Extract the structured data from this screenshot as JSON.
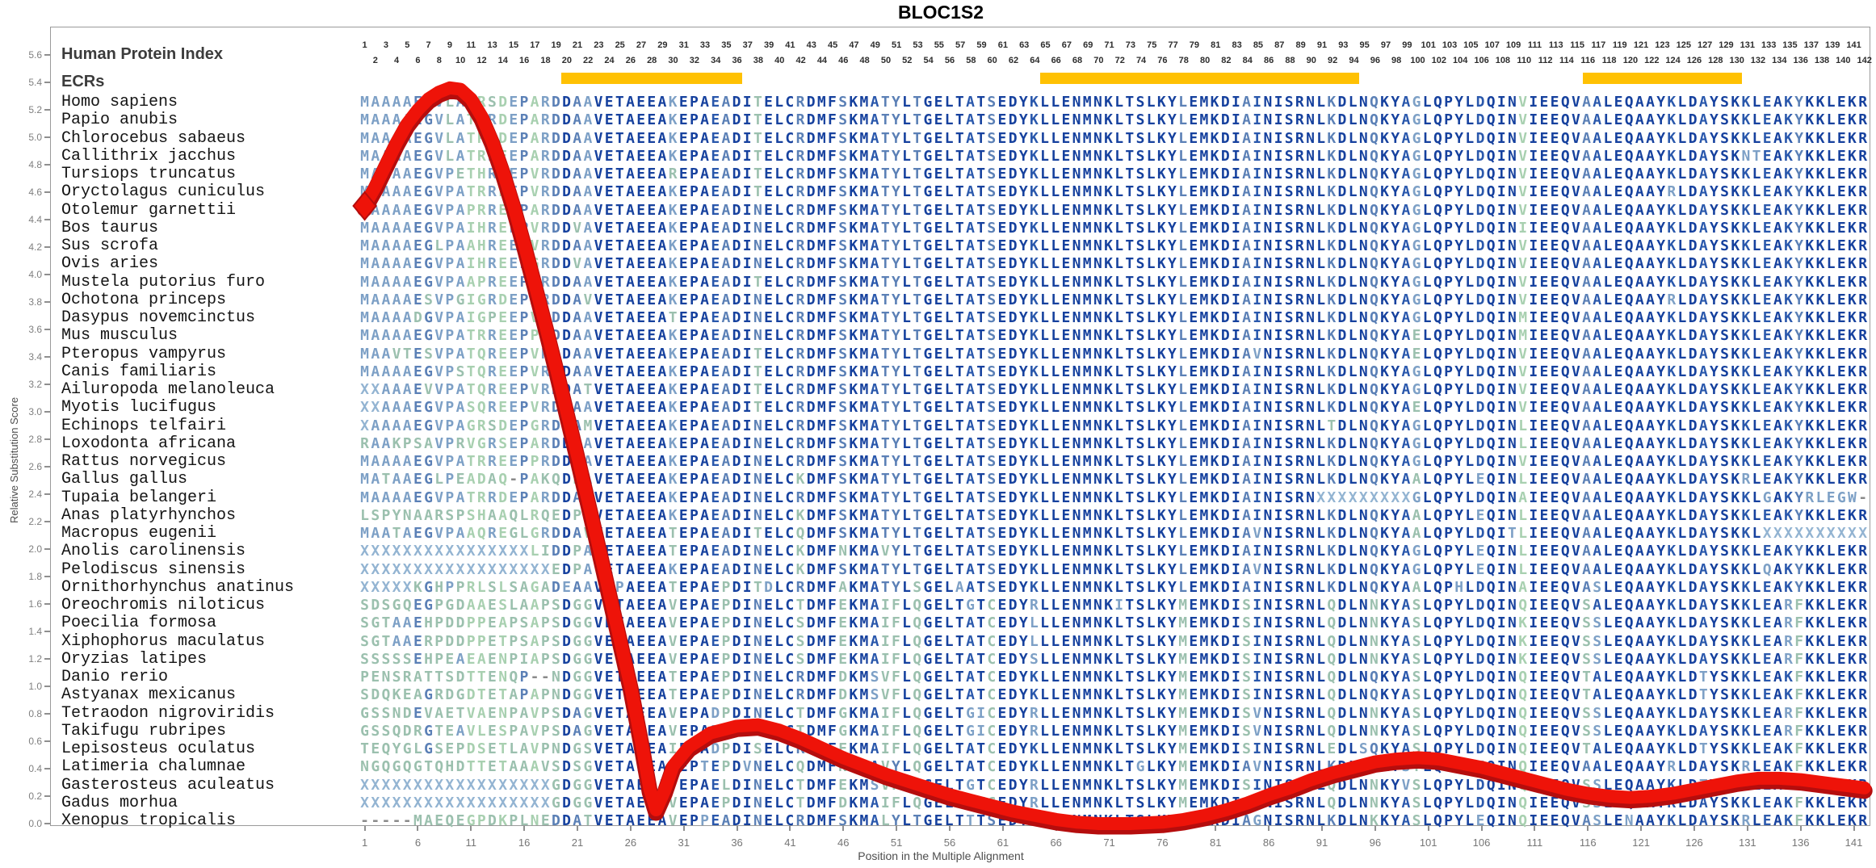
{
  "title": "BLOC1S2",
  "header": {
    "index_label": "Human Protein Index",
    "ecrs_label": "ECRs"
  },
  "axes": {
    "y_label": "Relative Substitution Score",
    "x_label": "Position in the Multiple Alignment",
    "y_ticks": [
      5.6,
      5.4,
      5.2,
      5.0,
      4.8,
      4.6,
      4.4,
      4.2,
      4.0,
      3.8,
      3.6,
      3.4,
      3.2,
      3.0,
      2.8,
      2.6,
      2.4,
      2.2,
      2.0,
      1.8,
      1.6,
      1.4,
      1.2,
      1.0,
      0.8,
      0.6,
      0.4,
      0.2,
      0.0
    ],
    "x_ticks": [
      1,
      6,
      11,
      16,
      21,
      26,
      31,
      36,
      41,
      46,
      51,
      56,
      61,
      66,
      71,
      76,
      81,
      86,
      91,
      96,
      101,
      106,
      111,
      116,
      121,
      126,
      131,
      136,
      141
    ],
    "top_numbers_odd": [
      1,
      3,
      5,
      7,
      9,
      11,
      13,
      15,
      17,
      19,
      21,
      23,
      25,
      27,
      29,
      31,
      33,
      35,
      37,
      39,
      41,
      43,
      45,
      47,
      49,
      51,
      53,
      55,
      57,
      59,
      61,
      63,
      65,
      67,
      69,
      71,
      73,
      75,
      77,
      79,
      81,
      83,
      85,
      87,
      89,
      91,
      93,
      95,
      97,
      99,
      101,
      103,
      105,
      107,
      109,
      111,
      113,
      115,
      117,
      119,
      121,
      123,
      125,
      127,
      129,
      131,
      133,
      135,
      137,
      139,
      141
    ],
    "top_numbers_even": [
      2,
      4,
      6,
      8,
      10,
      12,
      14,
      16,
      18,
      20,
      22,
      24,
      26,
      28,
      30,
      32,
      34,
      36,
      38,
      40,
      42,
      44,
      46,
      48,
      50,
      52,
      54,
      56,
      58,
      60,
      62,
      64,
      66,
      68,
      70,
      72,
      74,
      76,
      78,
      80,
      82,
      84,
      86,
      88,
      90,
      92,
      94,
      96,
      98,
      100,
      102,
      104,
      106,
      108,
      110,
      112,
      114,
      116,
      118,
      120,
      122,
      124,
      126,
      128,
      130,
      132,
      134,
      136,
      138,
      140,
      142
    ]
  },
  "ecr_bars": {
    "color": "#ffc103",
    "regions": [
      {
        "start": 20,
        "end": 36
      },
      {
        "start": 65,
        "end": 94
      },
      {
        "start": 116,
        "end": 130
      }
    ]
  },
  "colors": {
    "curve_main": "#ee1309",
    "curve_shadow": "#b50d0d",
    "seq_navy": "#16419e",
    "seq_medium_dark": "#2a58ac",
    "seq_medium": "#5b80b6",
    "seq_slate": "#7da0c6",
    "seq_pale_green": "#a8d0b0",
    "seq_mismatch_green": "#9bc0ae",
    "seq_x": "#93b4d2",
    "seq_gap": "#8a8a8a"
  },
  "alignment": {
    "species": [
      "Homo sapiens",
      "Papio anubis",
      "Chlorocebus sabaeus",
      "Callithrix jacchus",
      "Tursiops truncatus",
      "Oryctolagus cuniculus",
      "Otolemur garnettii",
      "Bos taurus",
      "Sus scrofa",
      "Ovis aries",
      "Mustela putorius furo",
      "Ochotona princeps",
      "Dasypus novemcinctus",
      "Mus musculus",
      "Pteropus vampyrus",
      "Canis familiaris",
      "Ailuropoda melanoleuca",
      "Myotis lucifugus",
      "Echinops telfairi",
      "Loxodonta africana",
      "Rattus norvegicus",
      "Gallus gallus",
      "Tupaia belangeri",
      "Anas platyrhynchos",
      "Macropus eugenii",
      "Anolis carolinensis",
      "Pelodiscus sinensis",
      "Ornithorhynchus anatinus",
      "Oreochromis niloticus",
      "Poecilia formosa",
      "Xiphophorus maculatus",
      "Oryzias latipes",
      "Danio rerio",
      "Astyanax mexicanus",
      "Tetraodon nigroviridis",
      "Takifugu rubripes",
      "Lepisosteus oculatus",
      "Latimeria chalumnae",
      "Gasterosteus aculeatus",
      "Gadus morhua",
      "Xenopus tropicalis"
    ],
    "sequences": [
      "MAAAAEGVLATRSDEPARDDAAVETAEEAKEPAEADITELCRDMFSKMATYLTGELTATSEDYKLLENMNKLTSLKYLEMKDIAINISRNLKDLNQKYAGLQPYLDQINVIEEQVAALEQAAYKLDAYSKKLEAKYKKLEKR",
      "MAAAAEGVLATRRDEPARDDAAVETAEEAKEPAEADITELCRDMFSKMATYLTGELTATSEDYKLLENMNKLTSLKYLEMKDIAINISRNLKDLNQKYAGLQPYLDQINVIEEQVAALEQAAYKLDAYSKKLEAKYKKLEKR",
      "MAAAAEGVLATRRDEPARDDAAVETAEEAKEPAEADITELCRDMFSKMATYLTGELTATSEDYKLLENMNKLTSLKYLEMKDIAINISRNLKDLNQKYAGLQPYLDQINVIEEQVAALEQAAYKLDAYSKKLEAKYKKLEKR",
      "MAAAAEGVLATRREEPARDDAAVETAEEAKEPAEADITELCRDMFSKMATYLTGELTATSEDYKLLENMNKLTSLKYLEMKDIAINISRNLKDLNQKYAGLQPYLDQINVIEEQVAALEQAAYKLDAYSKNTEAKYKKLEKR",
      "MAAAAEGVPETHREEPVRDDAAVETAEEAREPAEADITELCRDMFSKMATYLTGELTATSEDYKLLENMNKLTSLKYLEMKDIAINISRNLKDLNQKYAGLQPYLDQINVIEEQVAALEQAAYKLDAYSKKLEAKYKKLEKR",
      "MAAAAEGVPATRREEPVRDDAAVETAEEAKEPAEADITELCRDMFSKMATYLTGELTATSEDYKLLENMNKLTSLKYLEMKDIAINISRNLKDLNQKYAGLQPYLDQINVIEEQVAALEQAAYRLDAYSKKLEAKYKKLEKR",
      "MAAAAEGVPAPRREEPARDDAAVETAEEAKEPAEADINELCRDMFSKMATYLTGELTATSEDYKLLENMNKLTSLKYLEMKDIAINISRNLKDLNQKYAGLQPYLDQINVIEEQVAALEQAAYKLDAYSKKLEAKYKKLEKR",
      "MAAAAEGVPAIHREEPVRDDVAVETAEEAKEPAEADINELCRDMFSKMATYLTGELTATSEDYKLLENMNKLTSLKYLEMKDIAINISRNLKDLNQKYAGLQPYLDQINIIEEQVAALEQAAYKLDAYSKKLEAKYKKLEKR",
      "MAAAAEGLPAAHREEPVRDDAAVETAEEAKEPAEADINELCRDMFSKMATYLTGELTATSEDYKLLENMNKLTSLKYLEMKDIAINISRNLKDLNQKYAGLQPYLDQINVIEEQVAALEQAAYKLDAYSKKLEAKYKKLEKR",
      "MAAAAEGVPAIHREEPGRDDVAVETAEEAKEPAEADINELCRDMFSKMATYLTGELTATSEDYKLLENMNKLTSLKYLEMKDIAINISRNLKDLNQKYAGLQPYLDQINVIEEQVAALEQAAYKLDAYSKKLEAKYKKLEKR",
      "MAAAAEGVPAAPREEPVRDDAAVETAEEAKEPAEADITELCRDMFSKMATYLTGELTATSEDYKLLENMNKLTSLKYLEMKDIAINISRNLKDLNQKYAGLQPYLDQINVIEEQVAALEQAAYKLDAYSKKLEAKYKKLEKR",
      "MAAAAESVPGIGRDEPARDDAVVETAEEAKEPAEADINELCRDMFSKMATYLTGELTATSEDYKLLENMNKLTSLKYLEMKDIAINISRNLKDLNQKYAGLQPYLDQINVIEEQVAALEQAAYRLDAYSKKLEAKYKKLEKR",
      "MAAAADGVPAIGPEEPVRDDAAVETAEEATEPAEADINELCRDMFSKMATYLTGELTATSEDYKLLENMNKLTSLKYLEMKDIAINISRNLKDLNQKYAGLQPYLDQINMIEEQVAALEQAAYKLDAYSKKLEAKYKKLEKR",
      "MAAAAEGVPATRREEPPRDDAAVETAEEAKEPAEADINELCRDMFSKMATYLTGELTATSEDYKLLENMNKLTSLKYLEMKDIAINISRNLKDLNQKYAELQPYLDQINMIEEQVAALEQAAYKLDAYSKKLEAKYKKLEKR",
      "MAAVTESVPATQREEPVRDDAAVETAEEAKEPAEADITELCRDMFSKMATYLTGELTATSEDYKLLENMNKLTSLKYLEMKDIAVNISRNLKDLNQKYAELQPYLDQINVIEEQVAALEQAAYKLDAYSKKLEAKYKKLEKR",
      "MAAAAEGVPSTQREEPVRDDAAVETAEEAKEPAEADITELCRDMFSKMATYLTGELTATSEDYKLLENMNKLTSLKYLEMKDIAINISRNLKDLNQKYAGLQPYLDQINVIEEQVAALEQAAYKLDAYSKKLEAKYKKLEKR",
      "XXAAAEVVPATQREEPVRDDATVETAEEAKEPAEADITELCRDMFSKMATYLTGELTATSEDYKLLENMNKLTSLKYLEMKDIAINISRNLKDLNQKYAGLQPYLDQINVIEEQVAALEQAAYKLDAYSKKLEAKYKKLEKR",
      "XXAAAEGVPASQREEPVRDDAAVETAEEAKEPAEADITELCRDMFSKMATYLTGELTATSEDYKLLENMNKLTSLKYLEMKDIAINISRNLKDLNQKYAELQPYLDQINVIEEQVAALEQAAYKLDAYSKKLEAKYKKLEKR",
      "XAAAAEGVPAGRSDEPGRDDAMVETAEEAKEPAEADINELCRDMFSKMATYLTGELTATSEDYKLLENMNKLTSLKYLEMKDIAINISRNLTDLNQKYAGLQPYLDQINLIEEQVAALEQAAYKLDAYSKKLEAKYKKLEKR",
      "RAAKPSAVPRVGRSEPARDDAAVETAEEAKEPAEADINELCRDMFSKMATYLTGELTATSEDYKLLENMNKLTSLKYLEMKDIAINISRNLKDLNQKYAGLQPYLDQINLIEEQVAALEQAAYKLDAYSKKLEAKYKKLEKR",
      "MAAAAEGVPATRREEPPRDDAAVETAEEAKEPAEADINELCRDMFSKMATYLTGELTATSEDYKLLENMNKLTSLKYLEMKDIAINISRNLKDLNQKYAGLQPYLDQINVIEEQVAALEQAAYKLDAYSKKLEAKYKKLEKR",
      "MATAAEGLPEADAQ-PAKQDPAVETAEEAKEPAEADINELCKDMFSKMATYLTGELTATSEDYKLLENMNKLTSLKYLEMKDIAINISRNLKDLNQKYAALQPYLEQINLIEEQVAALEQAAYKLDAYSKRLEAKYKKLEKR",
      "MAAAAEGVPATRRDEPARDDAAVETAEEAKEPAEADINELCRDMFSKMATYLTGELTATSEDYKLLENMNKLTSLKYLEMKDIAINISRNXXXXXXXXXGLQPYLDQINAIEEQVAALEQAAYKLDAYSKKLGAKYRLEGW-",
      "LSPYNAARSPSHAAQLRQEDPAVETAEEAKEPAEADINELCKDMFSKMATYLTGELTATSEDYKLLENMNKLTSLKYLEMKDIAINISRNLKDLNQKYAALQPYLEQINLIEEQVAALEQAAYKLDAYSKKLEAKYKKLEKR",
      "MAATAEGVPAAQREGLGRDDAVVETAEEATEPAEADITELCQDMFSKMATYLTGELTATSEDYKLLENMNKLTSLKYLEMKDIAVNISRNLKDLNQKYAALQPYLDQITLIEEQVAALEQAAYKLDAYSKKLXXXXXXXXXX",
      "XXXXXXXXXXXXXXXXLIDDPAVETAEEATEPAEADINELCKDMFNKMAVYLTGELTATSEDYKLLENMNKLTSLKYLEMKDIAINISRNLKDLNQKYAGLQPYLEQINLIEEQVAALEQAAYKLDAYSKKLEAKYKKLEKR",
      "XXXXXXXXXXXXXXXXXXEDPAVETAEEAKEPAEADINELCKDMFSKMATYLTGELTATSEDYKLLENMNKLTSLKYLEMKDIAVNISRNLKDLNQKYAGLQPYLEQINLIEEQVAALEQAAYKLDAYSKKLQAKYKKLEKR",
      "XXXXXKGHPPRLSLSAGADEAAVEPAEEATEPAEPDITDLCRDMFAKMATYLSGELAATSEDYKLLENMNKLTSLKYLEMKDIAINISRNLKDLNQKYAALQPHLDQINAIEEQVASLEQAAYKLDAYSKKLEAKYKKLEKR",
      "SDSGQEGPGDAAESLAAPSDGGVETAEEAVEPAEPDINELCTDMFEKMAIFLQGELTGTCEDYRLLENMNKITSLKYMEMKDISINISRNLQDLNNKYASLQPYLDQINQIEEQVSALEQAAYKLDAYSKKLEARFKKLEKR",
      "SGTAAEHPDDPPEAPSAPSDGGVETAEEAVEPAEPDINELCSDMFEKMAIFLQGELTATCEDYLLLENMNKLTSLKYMEMKDISINISRNLQDLNNKYASLQPYLDQINKIEEQVSSLEQAAYKLDAYSKKLEARFKKLEKR",
      "SGTAAERPDDPPETPSAPSDGGVETAEEAVEPAEPDINELCSDMFEKMAIFLQGELTATCEDYLLLENMNKLTSLKYMEMKDISINISRNLQDLNNKYASLQPYLDQINKIEEQVSSLEQAAYKLDAYSKKLEARFKKLEKR",
      "SSSSSEHPEAEAENPIAPSDGGVETAEEAVEPAEPDINELCSDMFEKMAIFLQGELTATCEDYSLLENMNKLTSLKYMEMKDISINISRNLQDLNNKYASLQPYLDQINKIEEQVSSLEQAAYKLDAYSKKLEARFKKLEKR",
      "PENSRATTSDTTENQP--NDGGVETAEEATEPAEPDINELCRDMFDKMSVFLQGELTATCEDYKLLENMNKLTSLKYMEMKDISINISRNLQDLNQKYASLQPYLDQINQIEEQVTALEQAAYKLDTYSKKLEAKFKKLEKR",
      "SDQKEAGRDGDTETAPAPNDGGVETAEEATEPAEPDINELCRDMFDKMSVFLQGELTATCEDYKLLENMNKLTSLKYMEMKDISINISRNLQDLNQKYASLQPYLDQINQIEEQVTALEQAAYKLDTYSKKLEAKFKKLEKR",
      "GSSNDEVAETVAENPAVPSDAGVETAEEAVEPADPDINELCTDMFGKMAIFLQGELTGICEDYRLLENMNKLTSLKYMEMKDISVNISRNLQDLNNKYASLQPYLDQINQIEEQVSSLEQAAYKLDAYSKKLEARFKKLEKR",
      "GSSQDRGTEAVLESPAVPSDAGVETAEEAVEPADPDINELCTDMFGKMAIFLQGELTGICEDYRLLENMNKLTSLKYMEMKDISVNISRNLQDLNNKYASLQPYLDQINQIEEQVSSLEQAAYKLDAYSKKLEARFKKLEKR",
      "TEQYGLGSEPDSETLAVPNDGSVETAEEAIEPADPDISELCRDMFEKMAIFLQGELTATCEDYKLLENMNKLTSLKYMEMKDISINISRNLEDLSQKYASLQPYLDQINQIEEQVTALEQAAYKLDTYSKKLEAKFKKLEKR",
      "NGQGQGTQHDTTETAAAVSDSGVETAEEATEPTEPDVNELCQDMFNKMAVYLQGELTATCEDYKLLENMNKLTGLKYMEMKDIAVNISRNLKDLNEKYSTLQPYLEQINQIEEQVAALEQAAYRLDAYSKRLEAKFKKLEKR",
      "XXXXXXXXXXXXXXXXXXGDGGVETAEEAVEPAELDINELCTDMFEKMSVFLQGELTGTCEDYRLLENMNKLTSLKYMEMKDISINISRNLQDLNNKYVSLQPYLDQINQIEEQVSSLEQAAYKLDTYSKKLEARFKKLEKR",
      "XXXXXXXXXXXXXXXXXXGDGGVETAEEAVEPAEPDINELCTDMFDKMAIFLQGELTATCEDYRLLENMNKLTSLKYMEMKDISINISRNLQDLNNKYASLQPYLDQINQIEEQVSSLEQAAYKLDAYSKKLEAKFKKLEKR",
      "-----MAEQEGPDKPLNEDDATVETAEEAVEPPEADINELCRDMFSKMALYLTGELTTTSEDYKLLENMNKLTSLKYMEMKDIAGNISRNLKDLNKKYASLQPYLEQINQIEEQVASLENAAYKLDAYSKRLEAKFKKLEKR"
    ]
  },
  "chart_data": {
    "type": "line",
    "title": "BLOC1S2",
    "xlabel": "Position in the Multiple Alignment",
    "ylabel": "Relative Substitution Score",
    "x_range": [
      1,
      142
    ],
    "y_range": [
      0,
      5.6
    ],
    "grid": false,
    "legend": "none",
    "ecr_regions": [
      [
        20,
        36
      ],
      [
        65,
        94
      ],
      [
        116,
        130
      ]
    ],
    "series": [
      {
        "name": "Relative Substitution Score",
        "color": "#ee1309",
        "points": [
          [
            1,
            4.5
          ],
          [
            2,
            4.64
          ],
          [
            3,
            4.8
          ],
          [
            4,
            4.96
          ],
          [
            5,
            5.1
          ],
          [
            6,
            5.2
          ],
          [
            7,
            5.28
          ],
          [
            8,
            5.33
          ],
          [
            9,
            5.36
          ],
          [
            10,
            5.35
          ],
          [
            11,
            5.28
          ],
          [
            12,
            5.15
          ],
          [
            13,
            4.97
          ],
          [
            14,
            4.75
          ],
          [
            15,
            4.5
          ],
          [
            16,
            4.22
          ],
          [
            17,
            3.93
          ],
          [
            18,
            3.63
          ],
          [
            19,
            3.32
          ],
          [
            20,
            3.0
          ],
          [
            21,
            2.68
          ],
          [
            22,
            2.35
          ],
          [
            23,
            2.02
          ],
          [
            24,
            1.68
          ],
          [
            25,
            1.34
          ],
          [
            26,
            1.0
          ],
          [
            27,
            0.6
          ],
          [
            27.8,
            0.25
          ],
          [
            28.4,
            0.1
          ],
          [
            29.2,
            0.24
          ],
          [
            30,
            0.42
          ],
          [
            31.5,
            0.56
          ],
          [
            33.5,
            0.66
          ],
          [
            36,
            0.71
          ],
          [
            38,
            0.72
          ],
          [
            40,
            0.68
          ],
          [
            42,
            0.62
          ],
          [
            44,
            0.55
          ],
          [
            46,
            0.48
          ],
          [
            48,
            0.42
          ],
          [
            50,
            0.36
          ],
          [
            52,
            0.31
          ],
          [
            54,
            0.26
          ],
          [
            56,
            0.21
          ],
          [
            58,
            0.17
          ],
          [
            60,
            0.13
          ],
          [
            62,
            0.09
          ],
          [
            64,
            0.06
          ],
          [
            66,
            0.03
          ],
          [
            68,
            0.01
          ],
          [
            70,
            0.0
          ],
          [
            73,
            0.0
          ],
          [
            76,
            0.01
          ],
          [
            78,
            0.03
          ],
          [
            80,
            0.06
          ],
          [
            82,
            0.1
          ],
          [
            84,
            0.15
          ],
          [
            86,
            0.21
          ],
          [
            88,
            0.26
          ],
          [
            90,
            0.32
          ],
          [
            92,
            0.37
          ],
          [
            94,
            0.41
          ],
          [
            96,
            0.45
          ],
          [
            98,
            0.47
          ],
          [
            100,
            0.48
          ],
          [
            102,
            0.47
          ],
          [
            104,
            0.44
          ],
          [
            106,
            0.41
          ],
          [
            108,
            0.37
          ],
          [
            110,
            0.33
          ],
          [
            112,
            0.29
          ],
          [
            114,
            0.25
          ],
          [
            116,
            0.22
          ],
          [
            118,
            0.2
          ],
          [
            120,
            0.19
          ],
          [
            122,
            0.2
          ],
          [
            124,
            0.22
          ],
          [
            126,
            0.25
          ],
          [
            128,
            0.28
          ],
          [
            130,
            0.31
          ],
          [
            132,
            0.33
          ],
          [
            134,
            0.33
          ],
          [
            136,
            0.32
          ],
          [
            138,
            0.3
          ],
          [
            140,
            0.28
          ],
          [
            142,
            0.26
          ]
        ]
      }
    ]
  }
}
